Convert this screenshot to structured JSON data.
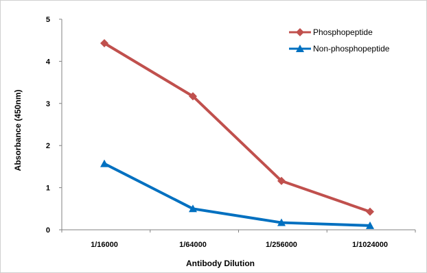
{
  "chart_data": {
    "type": "line",
    "title": "",
    "xlabel": "Antibody Dilution",
    "ylabel": "Absorbance (450nm)",
    "categories": [
      "1/16000",
      "1/64000",
      "1/256000",
      "1/1024000"
    ],
    "ylim": [
      0,
      5
    ],
    "yticks": [
      "0",
      "1",
      "2",
      "3",
      "4",
      "5"
    ],
    "grid": false,
    "legend_position": "top-right",
    "series": [
      {
        "name": "Phosphopeptide",
        "values": [
          4.43,
          3.17,
          1.16,
          0.43
        ],
        "color": "#c0504d",
        "marker": "diamond"
      },
      {
        "name": "Non-phosphopeptide",
        "values": [
          1.57,
          0.5,
          0.17,
          0.1
        ],
        "color": "#0070c0",
        "marker": "triangle"
      }
    ]
  }
}
